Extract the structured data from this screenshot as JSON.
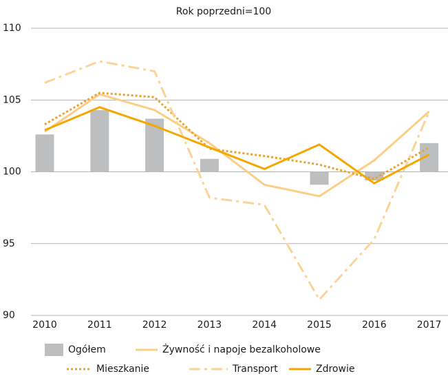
{
  "chart_data": {
    "type": "combo",
    "title": "Rok poprzedni=100",
    "categories": [
      "2010",
      "2011",
      "2012",
      "2013",
      "2014",
      "2015",
      "2016",
      "2017"
    ],
    "ylim": [
      90,
      110
    ],
    "yticks": [
      90,
      95,
      100,
      105,
      110
    ],
    "grid": true,
    "bar_base": 100,
    "legend": "bottom",
    "series": [
      {
        "name": "Ogółem",
        "kind": "bar",
        "color": "#bdbec0",
        "values": [
          102.6,
          104.3,
          103.7,
          100.9,
          100.0,
          99.1,
          99.4,
          102.0
        ]
      },
      {
        "name": "Żywność i napoje bezalkoholowe",
        "kind": "line",
        "style": "solid",
        "color": "#fbcd85",
        "values": [
          102.8,
          105.4,
          104.3,
          102.0,
          99.1,
          98.3,
          100.8,
          104.2
        ]
      },
      {
        "name": "Mieszkanie",
        "kind": "line",
        "style": "dotted",
        "color": "#eda12c",
        "values": [
          103.3,
          105.5,
          105.2,
          101.6,
          101.1,
          100.5,
          99.5,
          101.7
        ]
      },
      {
        "name": "Transport",
        "kind": "line",
        "style": "dashdot",
        "color": "#fcd396",
        "values": [
          106.2,
          107.7,
          107.0,
          98.2,
          97.7,
          91.1,
          95.3,
          104.2
        ]
      },
      {
        "name": "Zdrowie",
        "kind": "line",
        "style": "solid",
        "color": "#f4a700",
        "values": [
          102.9,
          104.5,
          103.2,
          101.7,
          100.2,
          101.9,
          99.2,
          101.2
        ]
      }
    ]
  }
}
